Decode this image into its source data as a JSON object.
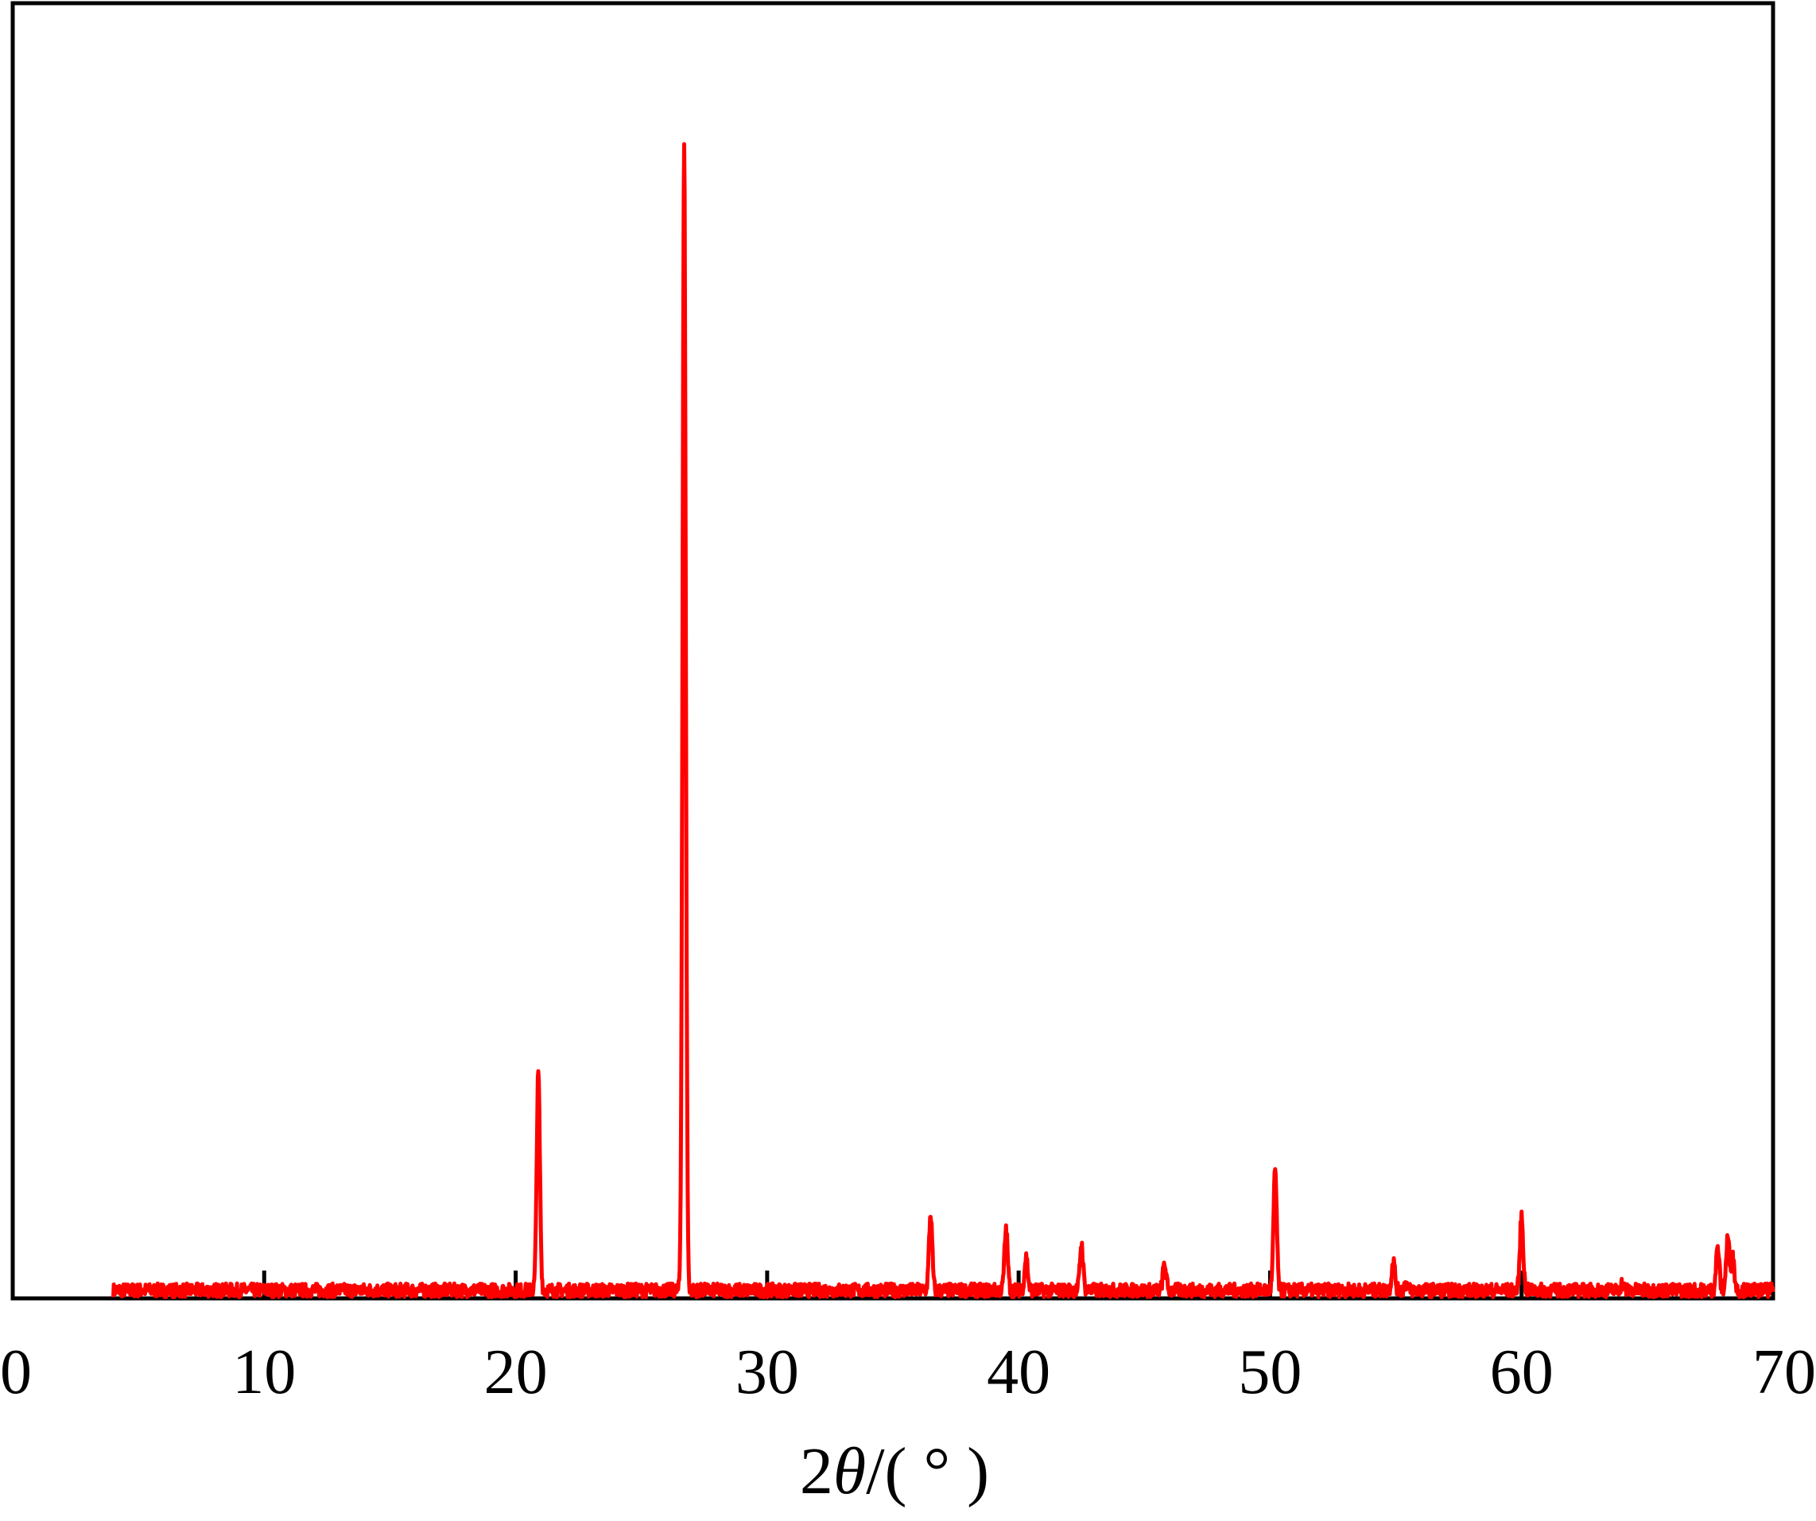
{
  "chart_data": {
    "type": "line",
    "title": "",
    "xlabel": {
      "prefix": "2",
      "symbol": "θ",
      "suffix": "/( ° )"
    },
    "ylabel": "",
    "xlim": [
      0,
      70
    ],
    "ylim": [
      0,
      100
    ],
    "x_ticks": [
      "0",
      "10",
      "20",
      "30",
      "40",
      "50",
      "60",
      "70"
    ],
    "grid": false,
    "legend": "none",
    "colors": {
      "series": "#ff0000",
      "axes": "#000000"
    },
    "baseline": 0.7,
    "noise_amplitude": 0.6,
    "x_range": [
      4,
      70
    ],
    "peaks": [
      {
        "x": 20.9,
        "y": 19.5
      },
      {
        "x": 26.7,
        "y": 100
      },
      {
        "x": 36.5,
        "y": 7.3
      },
      {
        "x": 39.5,
        "y": 6.0
      },
      {
        "x": 40.3,
        "y": 3.6
      },
      {
        "x": 42.5,
        "y": 4.7
      },
      {
        "x": 45.8,
        "y": 3.0
      },
      {
        "x": 50.2,
        "y": 11.2
      },
      {
        "x": 54.9,
        "y": 3.3
      },
      {
        "x": 55.4,
        "y": 1.3
      },
      {
        "x": 60.0,
        "y": 7.2
      },
      {
        "x": 64.0,
        "y": 1.3
      },
      {
        "x": 67.8,
        "y": 4.5
      },
      {
        "x": 68.2,
        "y": 5.3
      },
      {
        "x": 68.4,
        "y": 3.5
      }
    ]
  }
}
